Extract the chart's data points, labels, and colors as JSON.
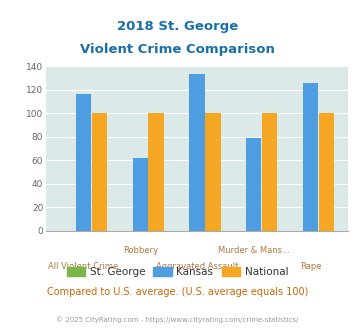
{
  "title_line1": "2018 St. George",
  "title_line2": "Violent Crime Comparison",
  "st_george": [
    0,
    0,
    0,
    0,
    0
  ],
  "kansas": [
    116,
    62,
    133,
    79,
    126
  ],
  "national": [
    100,
    100,
    100,
    100,
    100
  ],
  "bar_colors": {
    "st_george": "#7ab648",
    "kansas": "#4d9de0",
    "national": "#f5a623"
  },
  "xlabels_row1": [
    "",
    "Robbery",
    "",
    "Murder & Mans...",
    ""
  ],
  "xlabels_row2": [
    "All Violent Crime",
    "",
    "Aggravated Assault",
    "",
    "Rape"
  ],
  "ylim": [
    0,
    140
  ],
  "yticks": [
    0,
    20,
    40,
    60,
    80,
    100,
    120,
    140
  ],
  "footer_text": "Compared to U.S. average. (U.S. average equals 100)",
  "copyright_text": "© 2025 CityRating.com - https://www.cityrating.com/crime-statistics/",
  "legend_labels": [
    "St. George",
    "Kansas",
    "National"
  ],
  "bg_color": "#dce9e9",
  "title_color": "#1a6fa8",
  "label_color": "#b07840",
  "footer_color": "#cc6600",
  "copyright_color": "#999999"
}
